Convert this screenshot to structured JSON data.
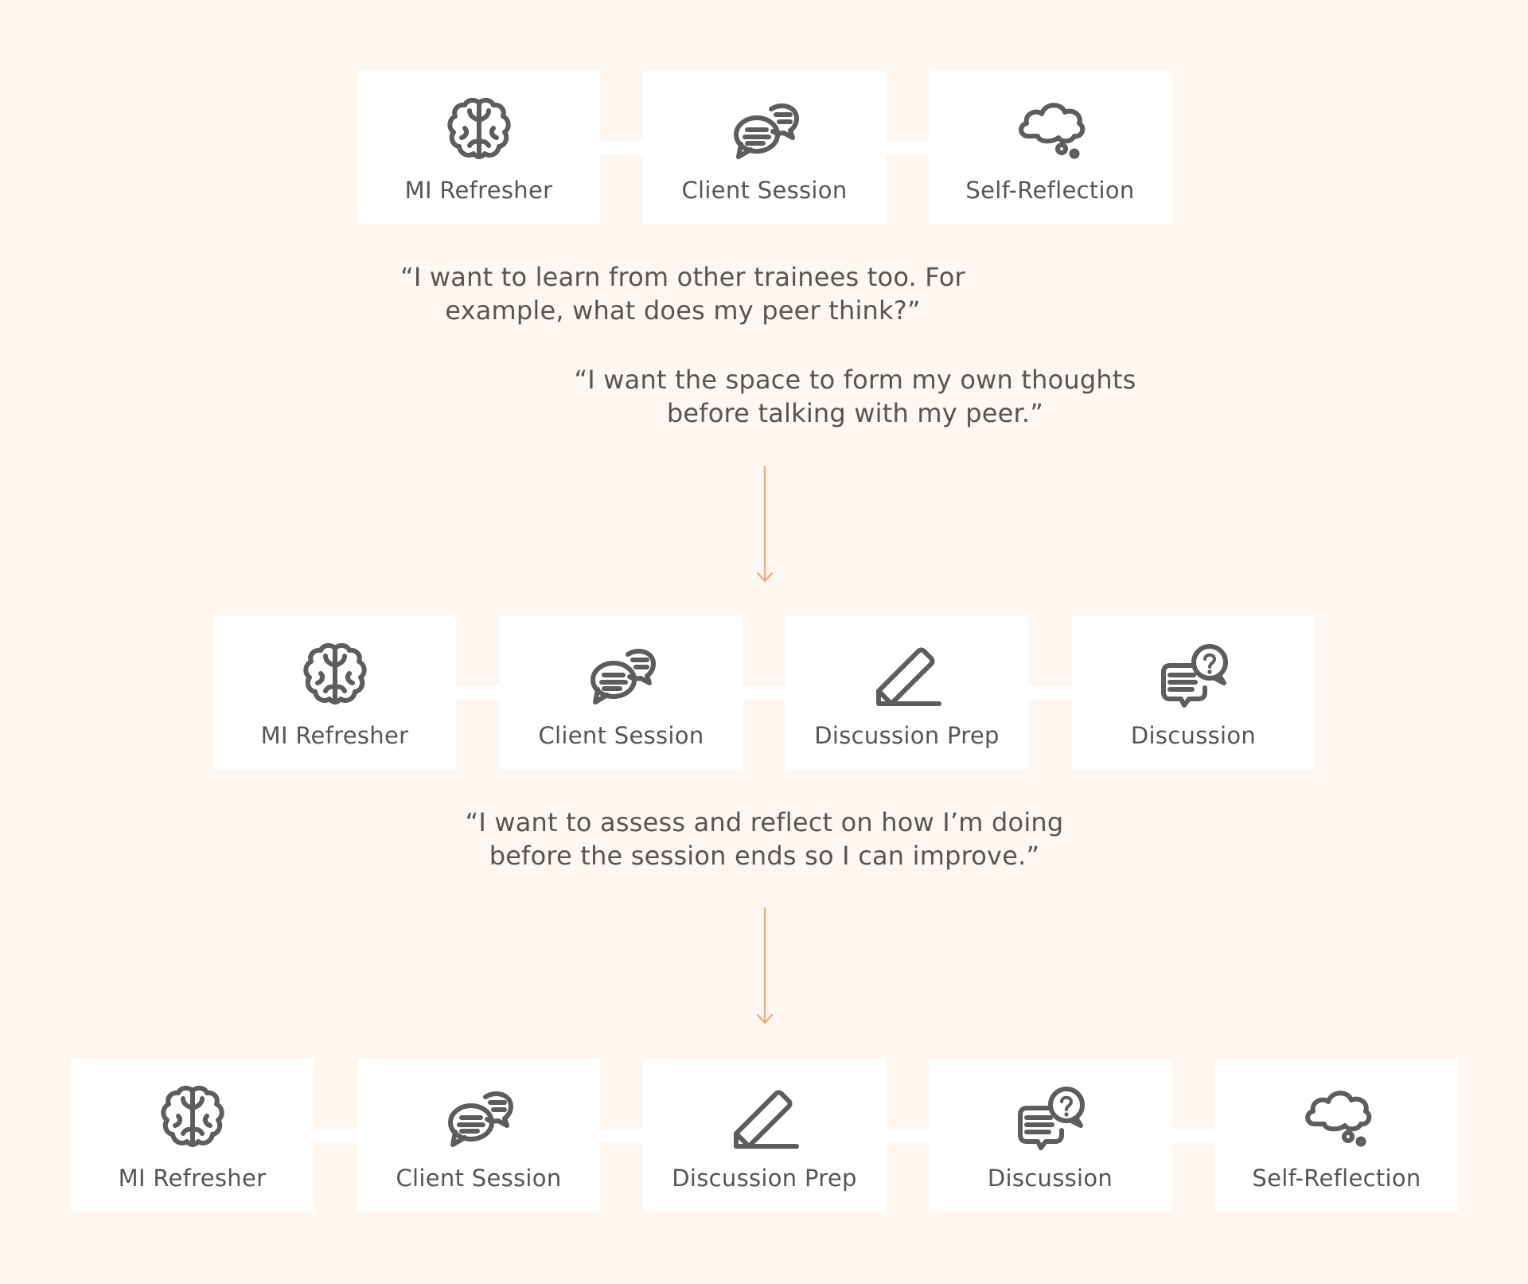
{
  "colors": {
    "background": "#fdf6f1",
    "card": "#ffffff",
    "text": "#555555",
    "icon": "#5d5d5d",
    "arrow": "#f2a77b"
  },
  "rows": [
    {
      "steps": [
        {
          "label": "MI Refresher",
          "icon": "brain-icon"
        },
        {
          "label": "Client Session",
          "icon": "chat-bubbles-icon"
        },
        {
          "label": "Self-Reflection",
          "icon": "thought-cloud-icon"
        }
      ]
    },
    {
      "steps": [
        {
          "label": "MI Refresher",
          "icon": "brain-icon"
        },
        {
          "label": "Client Session",
          "icon": "chat-bubbles-icon"
        },
        {
          "label": "Discussion Prep",
          "icon": "pencil-icon"
        },
        {
          "label": "Discussion",
          "icon": "question-chat-icon"
        }
      ]
    },
    {
      "steps": [
        {
          "label": "MI Refresher",
          "icon": "brain-icon"
        },
        {
          "label": "Client Session",
          "icon": "chat-bubbles-icon"
        },
        {
          "label": "Discussion Prep",
          "icon": "pencil-icon"
        },
        {
          "label": "Discussion",
          "icon": "question-chat-icon"
        },
        {
          "label": "Self-Reflection",
          "icon": "thought-cloud-icon"
        }
      ]
    }
  ],
  "quotes": {
    "q1_line1": "“I want to learn from other trainees too. For",
    "q1_line2": "example, what does my peer think?”",
    "q2_line1": "“I want the space to form my own thoughts",
    "q2_line2": "before talking with my peer.”",
    "q3_line1": "“I want to assess and reflect on how I’m doing",
    "q3_line2": "before the session ends so I can improve.”"
  }
}
